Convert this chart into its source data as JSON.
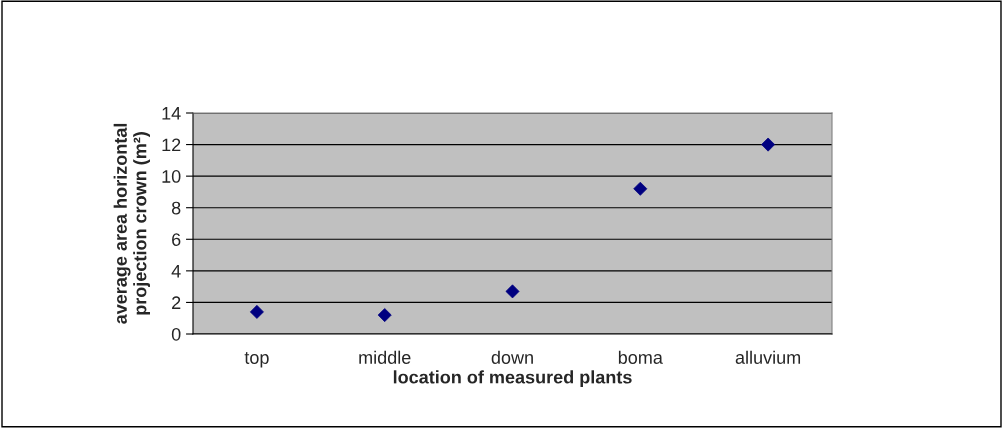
{
  "chart_data": {
    "type": "scatter",
    "xlabel": "location of measured plants",
    "ylabel": "average area horizontal\nprojection crown (m²)",
    "categories": [
      "top",
      "middle",
      "down",
      "boma",
      "alluvium"
    ],
    "series": [
      {
        "color": "#000080",
        "values": [
          1.4,
          1.2,
          2.7,
          9.2,
          12.0
        ]
      }
    ],
    "ylim": [
      0,
      14
    ],
    "yticks": [
      0,
      2,
      4,
      6,
      8,
      10,
      12,
      14
    ],
    "grid": "y",
    "marker": "diamond",
    "legend": false
  }
}
